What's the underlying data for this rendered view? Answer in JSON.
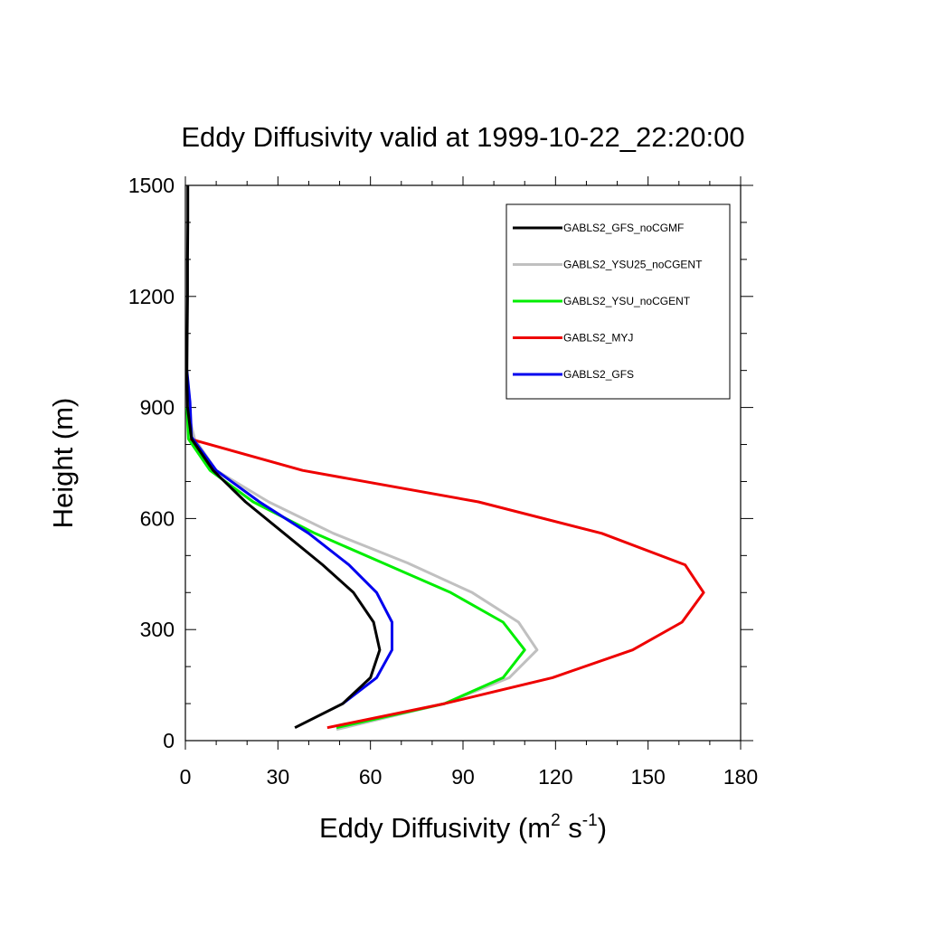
{
  "chart_data": {
    "type": "line",
    "title": "Eddy Diffusivity valid at 1999-10-22_22:20:00",
    "xlabel": {
      "main": "Eddy Diffusivity (m",
      "sup1": "2",
      "mid": " s",
      "sup2": "-1",
      "end": ")"
    },
    "ylabel": "Height (m)",
    "xlim": [
      0,
      180
    ],
    "ylim": [
      0,
      1500
    ],
    "xticks": [
      0,
      30,
      60,
      90,
      120,
      150,
      180
    ],
    "yticks": [
      0,
      300,
      600,
      900,
      1200,
      1500
    ],
    "xtick_labels": [
      "0",
      "30",
      "60",
      "90",
      "120",
      "150",
      "180"
    ],
    "ytick_labels": [
      "0",
      "300",
      "600",
      "900",
      "1200",
      "1500"
    ],
    "legend_position": "top-right",
    "series": [
      {
        "name": "GABLS2_GFS_noCGMF",
        "color": "#000000",
        "points": [
          [
            35.5,
            35
          ],
          [
            51,
            100
          ],
          [
            60,
            170
          ],
          [
            63,
            245
          ],
          [
            61,
            320
          ],
          [
            54.5,
            400
          ],
          [
            44.5,
            475
          ],
          [
            32,
            560
          ],
          [
            19.5,
            645
          ],
          [
            9,
            730
          ],
          [
            2,
            815
          ],
          [
            0.7,
            900
          ],
          [
            0.5,
            1000
          ],
          [
            0.6,
            1100
          ],
          [
            0.7,
            1200
          ],
          [
            0.7,
            1300
          ],
          [
            0.8,
            1400
          ],
          [
            0.8,
            1500
          ]
        ]
      },
      {
        "name": "GABLS2_YSU25_noCGENT",
        "color": "#c0c0c0",
        "points": [
          [
            49,
            30
          ],
          [
            84,
            100
          ],
          [
            105,
            170
          ],
          [
            114,
            245
          ],
          [
            108,
            320
          ],
          [
            93,
            400
          ],
          [
            72,
            480
          ],
          [
            48,
            560
          ],
          [
            27,
            645
          ],
          [
            10,
            730
          ],
          [
            3,
            815
          ],
          [
            0.5,
            900
          ]
        ]
      },
      {
        "name": "GABLS2_YSU_noCGENT",
        "color": "#00ee00",
        "points": [
          [
            49,
            35
          ],
          [
            84,
            100
          ],
          [
            103,
            170
          ],
          [
            110,
            245
          ],
          [
            103,
            320
          ],
          [
            86,
            400
          ],
          [
            64,
            480
          ],
          [
            42,
            560
          ],
          [
            22,
            645
          ],
          [
            8,
            730
          ],
          [
            1,
            815
          ],
          [
            0.5,
            900
          ]
        ]
      },
      {
        "name": "GABLS2_MYJ",
        "color": "#ee0000",
        "points": [
          [
            46,
            35
          ],
          [
            84,
            100
          ],
          [
            119,
            170
          ],
          [
            145,
            245
          ],
          [
            161,
            320
          ],
          [
            168,
            400
          ],
          [
            162,
            475
          ],
          [
            135,
            560
          ],
          [
            95,
            645
          ],
          [
            38,
            730
          ],
          [
            1.5,
            815
          ]
        ]
      },
      {
        "name": "GABLS2_GFS",
        "color": "#0000ee",
        "points": [
          [
            51,
            100
          ],
          [
            62,
            170
          ],
          [
            67,
            245
          ],
          [
            67,
            320
          ],
          [
            62,
            400
          ],
          [
            53,
            475
          ],
          [
            40,
            560
          ],
          [
            24,
            645
          ],
          [
            10,
            730
          ],
          [
            2,
            820
          ],
          [
            1.5,
            915
          ],
          [
            0.5,
            1000
          ]
        ]
      }
    ]
  }
}
